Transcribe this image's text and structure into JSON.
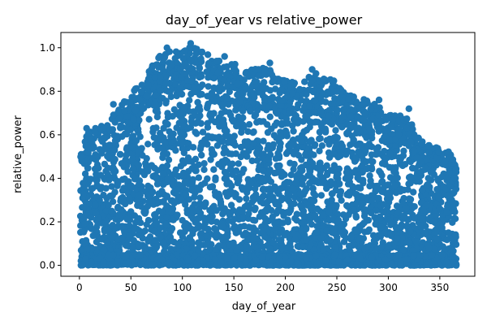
{
  "chart_data": {
    "type": "scatter",
    "title": "day_of_year vs relative_power",
    "xlabel": "day_of_year",
    "ylabel": "relative_power",
    "xlim": [
      -18,
      384
    ],
    "ylim": [
      -0.05,
      1.07
    ],
    "x_ticks": [
      0,
      50,
      100,
      150,
      200,
      250,
      300,
      350
    ],
    "y_ticks": [
      0.0,
      0.2,
      0.4,
      0.6,
      0.8,
      1.0
    ],
    "x_tick_labels": [
      "0",
      "50",
      "100",
      "150",
      "200",
      "250",
      "300",
      "350"
    ],
    "y_tick_labels": [
      "0.0",
      "0.2",
      "0.4",
      "0.6",
      "0.8",
      "1.0"
    ],
    "grid": false,
    "legend": "none",
    "marker_color": "#1f77b4",
    "upper_envelope": {
      "x": [
        1,
        10,
        20,
        30,
        40,
        50,
        60,
        70,
        80,
        90,
        100,
        110,
        120,
        130,
        140,
        150,
        160,
        170,
        180,
        190,
        200,
        210,
        220,
        230,
        240,
        250,
        260,
        270,
        280,
        290,
        300,
        310,
        320,
        330,
        340,
        350,
        360,
        366
      ],
      "y": [
        0.54,
        0.62,
        0.65,
        0.67,
        0.74,
        0.78,
        0.86,
        0.93,
        0.97,
        0.99,
        0.98,
        1.01,
        0.98,
        0.96,
        0.93,
        0.94,
        0.9,
        0.91,
        0.92,
        0.88,
        0.86,
        0.84,
        0.86,
        0.89,
        0.86,
        0.85,
        0.78,
        0.78,
        0.76,
        0.74,
        0.7,
        0.69,
        0.68,
        0.58,
        0.55,
        0.54,
        0.52,
        0.45
      ]
    },
    "highlighted_points": [
      {
        "x": 85,
        "y": 1.0
      },
      {
        "x": 108,
        "y": 1.02
      },
      {
        "x": 141,
        "y": 0.96
      },
      {
        "x": 185,
        "y": 0.93
      },
      {
        "x": 226,
        "y": 0.9
      },
      {
        "x": 291,
        "y": 0.76
      },
      {
        "x": 320,
        "y": 0.72
      },
      {
        "x": 33,
        "y": 0.74
      },
      {
        "x": 7,
        "y": 0.63
      }
    ]
  }
}
